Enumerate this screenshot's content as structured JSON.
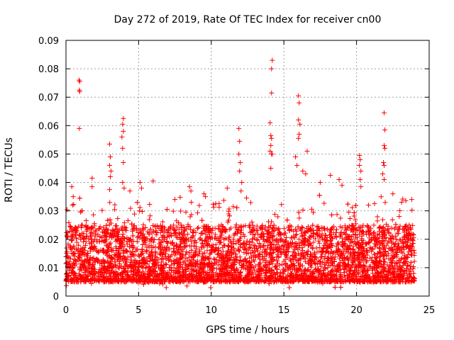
{
  "chart_data": {
    "type": "scatter",
    "title": "Day 272 of 2019, Rate Of TEC Index for receiver cn00",
    "xlabel": "GPS time / hours",
    "ylabel": "ROTI / TECUs",
    "xlim": [
      0,
      25
    ],
    "ylim": [
      0,
      0.09
    ],
    "grid": true,
    "marker": "+",
    "color": "#ff0000",
    "x_ticks": [
      "0",
      "5",
      "10",
      "15",
      "20",
      "25"
    ],
    "y_ticks": [
      "0",
      "0.01",
      "0.02",
      "0.03",
      "0.04",
      "0.05",
      "0.06",
      "0.07",
      "0.08",
      "0.09"
    ],
    "x_tick_values": [
      0,
      5,
      10,
      15,
      20,
      25
    ],
    "y_tick_values": [
      0,
      0.01,
      0.02,
      0.03,
      0.04,
      0.05,
      0.06,
      0.07,
      0.08,
      0.09
    ],
    "series": [
      {
        "name": "ROTI",
        "baseline": {
          "x_start": 0,
          "x_end": 24,
          "typical_min": 0.005,
          "typical_max": 0.025
        },
        "outliers": [
          {
            "x": 0.9,
            "y": 0.076
          },
          {
            "x": 0.95,
            "y": 0.0755
          },
          {
            "x": 0.92,
            "y": 0.0725
          },
          {
            "x": 0.95,
            "y": 0.072
          },
          {
            "x": 0.92,
            "y": 0.059
          },
          {
            "x": 0.4,
            "y": 0.0385
          },
          {
            "x": 0.5,
            "y": 0.035
          },
          {
            "x": 0.45,
            "y": 0.032
          },
          {
            "x": 1.8,
            "y": 0.0415
          },
          {
            "x": 1.8,
            "y": 0.0385
          },
          {
            "x": 3.0,
            "y": 0.0535
          },
          {
            "x": 3.05,
            "y": 0.049
          },
          {
            "x": 3.0,
            "y": 0.046
          },
          {
            "x": 3.1,
            "y": 0.044
          },
          {
            "x": 3.05,
            "y": 0.042
          },
          {
            "x": 3.0,
            "y": 0.0375
          },
          {
            "x": 3.95,
            "y": 0.0625
          },
          {
            "x": 3.9,
            "y": 0.0605
          },
          {
            "x": 3.95,
            "y": 0.058
          },
          {
            "x": 3.85,
            "y": 0.056
          },
          {
            "x": 3.9,
            "y": 0.052
          },
          {
            "x": 3.95,
            "y": 0.047
          },
          {
            "x": 3.9,
            "y": 0.04
          },
          {
            "x": 4.0,
            "y": 0.038
          },
          {
            "x": 4.4,
            "y": 0.037
          },
          {
            "x": 5.1,
            "y": 0.04
          },
          {
            "x": 5.2,
            "y": 0.038
          },
          {
            "x": 6.0,
            "y": 0.0405
          },
          {
            "x": 8.5,
            "y": 0.0385
          },
          {
            "x": 8.6,
            "y": 0.037
          },
          {
            "x": 9.5,
            "y": 0.036
          },
          {
            "x": 9.6,
            "y": 0.035
          },
          {
            "x": 11.1,
            "y": 0.038
          },
          {
            "x": 11.9,
            "y": 0.059
          },
          {
            "x": 11.95,
            "y": 0.0545
          },
          {
            "x": 11.9,
            "y": 0.05
          },
          {
            "x": 12.0,
            "y": 0.047
          },
          {
            "x": 11.95,
            "y": 0.044
          },
          {
            "x": 12.1,
            "y": 0.04
          },
          {
            "x": 12.05,
            "y": 0.037
          },
          {
            "x": 14.2,
            "y": 0.083
          },
          {
            "x": 14.15,
            "y": 0.08
          },
          {
            "x": 14.15,
            "y": 0.0715
          },
          {
            "x": 14.05,
            "y": 0.061
          },
          {
            "x": 14.1,
            "y": 0.0565
          },
          {
            "x": 14.15,
            "y": 0.0555
          },
          {
            "x": 14.1,
            "y": 0.053
          },
          {
            "x": 14.05,
            "y": 0.051
          },
          {
            "x": 14.15,
            "y": 0.05
          },
          {
            "x": 14.2,
            "y": 0.05
          },
          {
            "x": 14.1,
            "y": 0.045
          },
          {
            "x": 16.0,
            "y": 0.0705
          },
          {
            "x": 16.05,
            "y": 0.068
          },
          {
            "x": 16.0,
            "y": 0.062
          },
          {
            "x": 16.1,
            "y": 0.0605
          },
          {
            "x": 16.05,
            "y": 0.057
          },
          {
            "x": 16.0,
            "y": 0.0555
          },
          {
            "x": 16.6,
            "y": 0.051
          },
          {
            "x": 15.8,
            "y": 0.049
          },
          {
            "x": 15.9,
            "y": 0.046
          },
          {
            "x": 16.3,
            "y": 0.044
          },
          {
            "x": 16.5,
            "y": 0.043
          },
          {
            "x": 20.2,
            "y": 0.0495
          },
          {
            "x": 20.25,
            "y": 0.048
          },
          {
            "x": 20.2,
            "y": 0.046
          },
          {
            "x": 20.3,
            "y": 0.044
          },
          {
            "x": 20.25,
            "y": 0.041
          },
          {
            "x": 20.3,
            "y": 0.0385
          },
          {
            "x": 21.9,
            "y": 0.0645
          },
          {
            "x": 21.95,
            "y": 0.0585
          },
          {
            "x": 21.9,
            "y": 0.053
          },
          {
            "x": 21.95,
            "y": 0.052
          },
          {
            "x": 21.85,
            "y": 0.047
          },
          {
            "x": 21.9,
            "y": 0.046
          },
          {
            "x": 21.8,
            "y": 0.043
          },
          {
            "x": 21.9,
            "y": 0.041
          },
          {
            "x": 18.2,
            "y": 0.0425
          },
          {
            "x": 18.8,
            "y": 0.041
          },
          {
            "x": 19.0,
            "y": 0.039
          },
          {
            "x": 17.5,
            "y": 0.04
          },
          {
            "x": 22.5,
            "y": 0.036
          },
          {
            "x": 23.8,
            "y": 0.034
          },
          {
            "x": 23.1,
            "y": 0.033
          }
        ]
      }
    ]
  }
}
